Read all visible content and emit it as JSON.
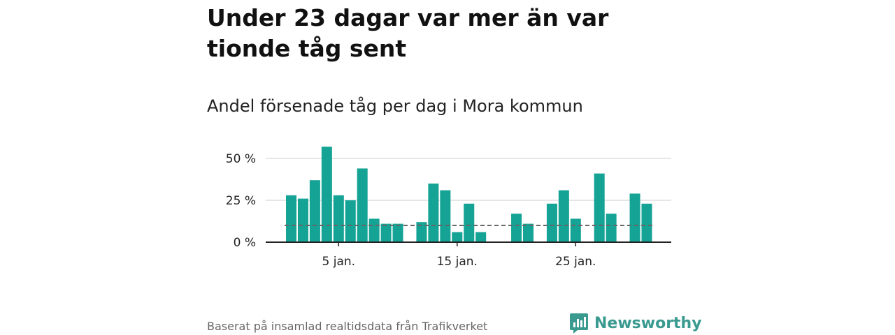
{
  "title": "Under 23 dagar var mer än var tionde tåg sent",
  "subtitle": "Andel försenade tåg per dag i Mora kommun",
  "source": "Baserat på insamlad realtidsdata från Trafikverket",
  "brand": {
    "name": "Newsworthy",
    "icon": "newsworthy-logo-icon",
    "color": "#3a9a90"
  },
  "colors": {
    "bar": "#14a394",
    "reference_line": "#666666",
    "grid": "#dddddd",
    "axis": "#222222"
  },
  "chart_data": {
    "type": "bar",
    "x_unit": "day of January",
    "x": [
      1,
      2,
      3,
      4,
      5,
      6,
      7,
      8,
      9,
      10,
      11,
      12,
      13,
      14,
      15,
      16,
      17,
      18,
      19,
      20,
      21,
      22,
      23,
      24,
      25,
      26,
      27,
      28,
      29,
      30,
      31
    ],
    "values": [
      28,
      26,
      37,
      57,
      28,
      25,
      44,
      14,
      11,
      11,
      null,
      12,
      35,
      31,
      6,
      23,
      6,
      null,
      null,
      17,
      11,
      null,
      23,
      31,
      14,
      null,
      41,
      17,
      null,
      29,
      23
    ],
    "reference_line": 10,
    "ylim": [
      0,
      60
    ],
    "yticks": [
      0,
      25,
      50
    ],
    "ytick_labels": [
      "0 %",
      "25 %",
      "50 %"
    ],
    "xticks": [
      5,
      15,
      25
    ],
    "xtick_labels": [
      "5 jan.",
      "15 jan.",
      "25 jan."
    ],
    "grid": "horizontal",
    "xlabel": "",
    "ylabel": ""
  }
}
